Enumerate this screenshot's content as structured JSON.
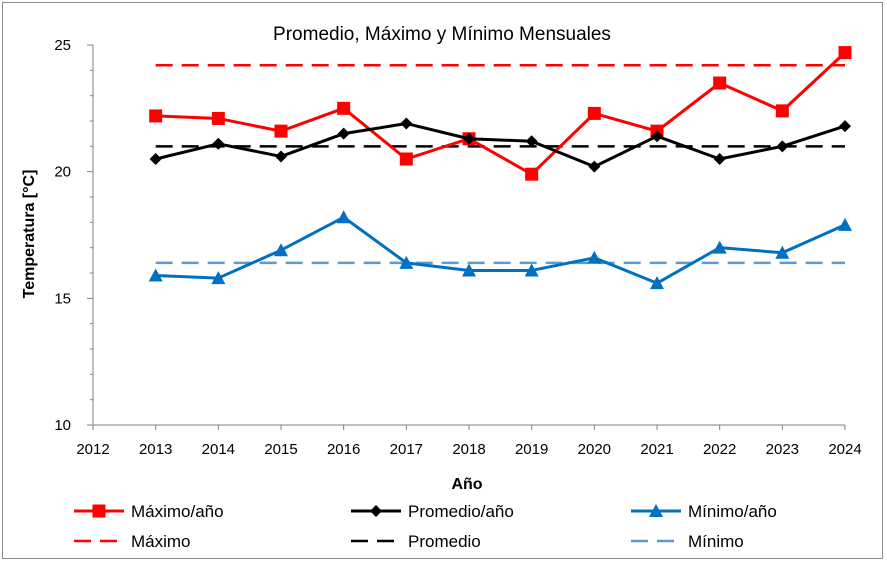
{
  "chart_data": {
    "type": "line",
    "title": "Promedio, Máximo y Mínimo Mensuales",
    "xlabel": "Año",
    "ylabel": "Temperatura [°C]",
    "x": [
      2012,
      2013,
      2014,
      2015,
      2016,
      2017,
      2018,
      2019,
      2020,
      2021,
      2022,
      2023,
      2024
    ],
    "xlim": [
      2012,
      2024
    ],
    "ylim": [
      10,
      25
    ],
    "yticks": [
      10,
      15,
      20,
      25
    ],
    "grid": false,
    "legend_position": "bottom",
    "series": [
      {
        "name": "Máximo/año",
        "color": "#ff0000",
        "marker": "square",
        "x": [
          2013,
          2014,
          2015,
          2016,
          2017,
          2018,
          2019,
          2020,
          2021,
          2022,
          2023,
          2024
        ],
        "values": [
          22.2,
          22.1,
          21.6,
          22.5,
          20.5,
          21.3,
          19.9,
          22.3,
          21.6,
          23.5,
          22.4,
          24.7
        ]
      },
      {
        "name": "Promedio/año",
        "color": "#000000",
        "marker": "diamond",
        "x": [
          2013,
          2014,
          2015,
          2016,
          2017,
          2018,
          2019,
          2020,
          2021,
          2022,
          2023,
          2024
        ],
        "values": [
          20.5,
          21.1,
          20.6,
          21.5,
          21.9,
          21.3,
          21.2,
          20.2,
          21.4,
          20.5,
          21.0,
          21.8
        ]
      },
      {
        "name": "Mínimo/año",
        "color": "#0070c0",
        "marker": "triangle",
        "x": [
          2013,
          2014,
          2015,
          2016,
          2017,
          2018,
          2019,
          2020,
          2021,
          2022,
          2023,
          2024
        ],
        "values": [
          15.9,
          15.8,
          16.9,
          18.2,
          16.4,
          16.1,
          16.1,
          16.6,
          15.6,
          17.0,
          16.8,
          17.9
        ]
      }
    ],
    "reference_lines": [
      {
        "name": "Máximo",
        "color": "#ff0000",
        "style": "dashed",
        "value": 24.2,
        "x_range": [
          2013,
          2024
        ]
      },
      {
        "name": "Promedio",
        "color": "#000000",
        "style": "dashed",
        "value": 21.0,
        "x_range": [
          2013,
          2024
        ]
      },
      {
        "name": "Mínimo",
        "color": "#5b9bd5",
        "style": "dashed",
        "value": 16.4,
        "x_range": [
          2013,
          2024
        ]
      }
    ]
  }
}
